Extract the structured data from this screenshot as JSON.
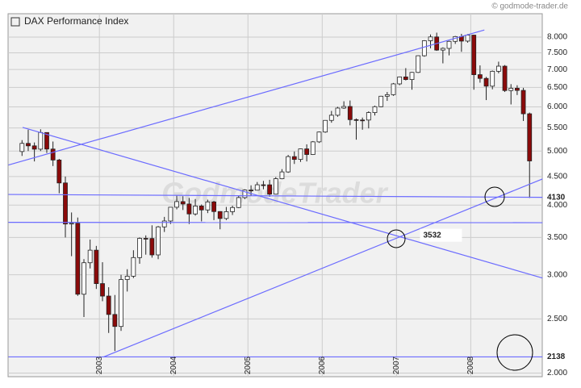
{
  "chart_data": {
    "type": "candlestick",
    "source": "© godmode-trader.de",
    "watermark": "GodmodeTrader",
    "log_scale": true,
    "grid": true,
    "legend": "top-left",
    "up_color": "#ffffff",
    "down_color": "#8b0a0a",
    "line_color": "#6b6bff",
    "ylim": [
      1970,
      8300
    ],
    "yticks": [
      {
        "value": 2000,
        "label": "2.000"
      },
      {
        "value": 2500,
        "label": "2.500"
      },
      {
        "value": 3000,
        "label": "3.000"
      },
      {
        "value": 3500,
        "label": "3.500"
      },
      {
        "value": 4000,
        "label": "4.000"
      },
      {
        "value": 4500,
        "label": "4.500"
      },
      {
        "value": 5000,
        "label": "5.000"
      },
      {
        "value": 5500,
        "label": "5.500"
      },
      {
        "value": 6000,
        "label": "6.000"
      },
      {
        "value": 6500,
        "label": "6.500"
      },
      {
        "value": 7000,
        "label": "7.000"
      },
      {
        "value": 7500,
        "label": "7.500"
      },
      {
        "value": 8000,
        "label": "8.000"
      }
    ],
    "categories": [
      null,
      null,
      null,
      null,
      null,
      null,
      null,
      null,
      null,
      null,
      null,
      null,
      null,
      "2003",
      null,
      null,
      null,
      null,
      null,
      null,
      null,
      null,
      null,
      null,
      null,
      "2004",
      null,
      null,
      null,
      null,
      null,
      null,
      null,
      null,
      null,
      null,
      null,
      "2005",
      null,
      null,
      null,
      null,
      null,
      null,
      null,
      null,
      null,
      null,
      null,
      "2006",
      null,
      null,
      null,
      null,
      null,
      null,
      null,
      null,
      null,
      null,
      null,
      "2007",
      null,
      null,
      null,
      null,
      null,
      null,
      null,
      null,
      null,
      null,
      null,
      "2008",
      null,
      null,
      null,
      null,
      null,
      null,
      null,
      null,
      null
    ],
    "series": [
      {
        "name": "DAX Performance Index",
        "open": [
          4990,
          5160,
          5108,
          5039,
          5397,
          5041,
          4818,
          4383,
          3700,
          3712,
          2769,
          3153,
          3321,
          2893,
          2748,
          2547,
          2424,
          2942,
          2983,
          3221,
          3487,
          3485,
          3257,
          3656,
          3746,
          3965,
          4058,
          4018,
          3857,
          3985,
          3921,
          4053,
          3895,
          3785,
          3893,
          3960,
          4126,
          4256,
          4254,
          4350,
          4349,
          4185,
          4460,
          4587,
          4886,
          4830,
          5044,
          4929,
          5193,
          5408,
          5674,
          5796,
          5970,
          6009,
          5692,
          5683,
          5682,
          5860,
          6004,
          6269,
          6309,
          6597,
          6789,
          6716,
          6917,
          7409,
          7883,
          8007,
          7584,
          7638,
          7862,
          8019,
          7871,
          8067,
          6852,
          6748,
          6535,
          6949,
          7097,
          6418,
          6480,
          6422,
          5831
        ],
        "high": [
          5230,
          5460,
          5180,
          5470,
          5400,
          5200,
          4840,
          4500,
          3880,
          3800,
          3200,
          3470,
          3380,
          3160,
          2850,
          2760,
          3000,
          3070,
          3320,
          3500,
          3530,
          3680,
          3670,
          3810,
          3970,
          4160,
          4150,
          4120,
          4100,
          4010,
          4090,
          4070,
          3900,
          3970,
          3990,
          4160,
          4270,
          4340,
          4400,
          4420,
          4440,
          4490,
          4640,
          4920,
          4990,
          5050,
          5140,
          5210,
          5420,
          5680,
          5900,
          6000,
          6140,
          6160,
          5720,
          5740,
          5890,
          6030,
          6280,
          6380,
          6620,
          6800,
          7040,
          6930,
          7420,
          7900,
          8090,
          8150,
          7670,
          7880,
          8040,
          8110,
          8100,
          8080,
          7120,
          6790,
          6970,
          7230,
          7130,
          6590,
          6560,
          6490,
          5860
        ],
        "low": [
          4900,
          5000,
          4790,
          5000,
          4960,
          4700,
          4200,
          3500,
          3240,
          2750,
          2520,
          3080,
          2830,
          2690,
          2360,
          2190,
          2380,
          2800,
          2960,
          3140,
          3260,
          3220,
          3200,
          3580,
          3700,
          3930,
          3920,
          3700,
          3830,
          3740,
          3870,
          3760,
          3620,
          3760,
          3840,
          3950,
          4100,
          4160,
          4250,
          4270,
          4140,
          4180,
          4450,
          4570,
          4740,
          4780,
          4790,
          4920,
          5170,
          5390,
          5620,
          5760,
          5950,
          5560,
          5240,
          5460,
          5490,
          5790,
          5990,
          6150,
          6280,
          6560,
          6690,
          6440,
          6900,
          7380,
          7640,
          7560,
          7180,
          7420,
          7780,
          7530,
          7820,
          6440,
          6630,
          6170,
          6450,
          6890,
          6380,
          6060,
          6300,
          5660,
          4120
        ],
        "close": [
          5160,
          5108,
          5039,
          5397,
          5041,
          4818,
          4383,
          3700,
          3712,
          2769,
          3153,
          3321,
          2893,
          2748,
          2547,
          2424,
          2942,
          2983,
          3221,
          3487,
          3485,
          3257,
          3656,
          3746,
          3965,
          4058,
          4018,
          3857,
          3985,
          3921,
          4053,
          3895,
          3785,
          3893,
          3960,
          4126,
          4256,
          4254,
          4350,
          4349,
          4185,
          4460,
          4587,
          4886,
          4830,
          5044,
          4929,
          5193,
          5408,
          5674,
          5796,
          5970,
          6009,
          5692,
          5683,
          5682,
          5860,
          6004,
          6269,
          6309,
          6597,
          6789,
          6716,
          6917,
          7409,
          7883,
          8007,
          7584,
          7638,
          7862,
          8019,
          7871,
          8067,
          6852,
          6748,
          6535,
          6949,
          7097,
          6418,
          6480,
          6422,
          5831,
          4800
        ]
      }
    ],
    "trend_lines": [
      {
        "points": [
          [
            -2.2,
            4720
          ],
          [
            74.7,
            8240
          ]
        ]
      },
      {
        "points": [
          [
            0.1,
            5513
          ],
          [
            84.1,
            2960
          ]
        ]
      },
      {
        "points": [
          [
            13.2,
            2138
          ],
          [
            84.1,
            4456
          ]
        ]
      },
      {
        "points": [
          [
            -2.2,
            4180
          ],
          [
            84.1,
            4130
          ]
        ]
      },
      {
        "points": [
          [
            -2.2,
            3725
          ],
          [
            84.1,
            3720
          ]
        ]
      },
      {
        "points": [
          [
            -2.2,
            2138
          ],
          [
            84.1,
            2138
          ]
        ]
      }
    ],
    "level_labels": [
      {
        "x": 85,
        "value": 4130
      },
      {
        "x": 85,
        "value": 2138
      },
      {
        "x": 64.3,
        "value": 3532
      }
    ]
  }
}
